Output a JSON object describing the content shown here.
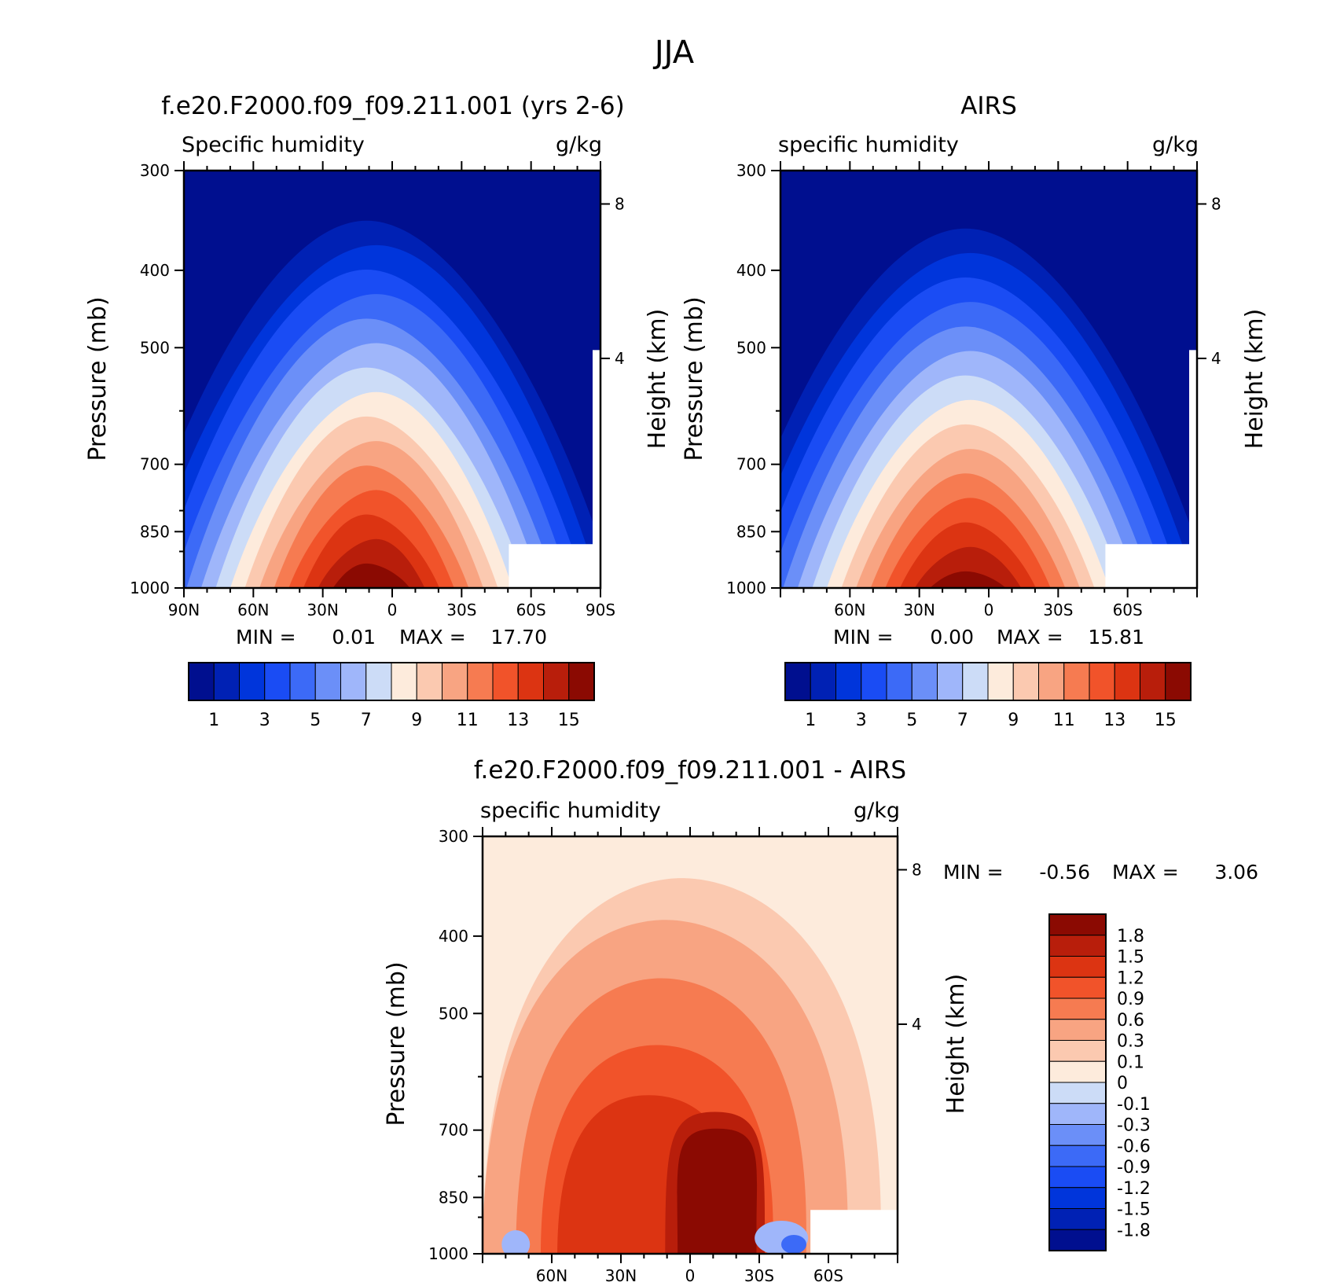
{
  "figure": {
    "title": "JJA"
  },
  "colors": {
    "seq": [
      "#000f8f",
      "#0021b4",
      "#0035db",
      "#1a4cf4",
      "#3c6af7",
      "#6b8ff8",
      "#9fb6fa",
      "#ccdcf7",
      "#fdebdc",
      "#fbc9b0",
      "#f8a482",
      "#f67b51",
      "#f1532a",
      "#dc3412",
      "#b81e0b",
      "#8b0a02"
    ],
    "diffpos": [
      "#fdebdc",
      "#fbc9b0",
      "#f8a482",
      "#f67b51",
      "#f1532a",
      "#dc3412",
      "#b81e0b",
      "#8b0a02"
    ],
    "diffneg": [
      "#000f8f",
      "#0021b4",
      "#0035db",
      "#1a4cf4",
      "#3c6af7",
      "#6b8ff8",
      "#9fb6fa",
      "#ccdcf7"
    ]
  },
  "chart_data": [
    {
      "type": "heatmap",
      "id": "model",
      "title": "f.e20.F2000.f09_f09.211.001 (yrs 2-6)",
      "left_label": "Specific humidity",
      "right_label": "g/kg",
      "ylabel": "Pressure (mb)",
      "y2label": "Height (km)",
      "y_ticks": [
        "300",
        "400",
        "500",
        "700",
        "850",
        "1000"
      ],
      "y2_ticks": [
        "8",
        "4"
      ],
      "x_ticks": [
        "90N",
        "60N",
        "30N",
        "0",
        "30S",
        "60S",
        "90S"
      ],
      "stats": {
        "min_label": "MIN =",
        "min": "0.01",
        "max_label": "MAX =",
        "max": "17.70"
      },
      "colorbar_labels": [
        "1",
        "3",
        "5",
        "7",
        "9",
        "11",
        "13",
        "15"
      ]
    },
    {
      "type": "heatmap",
      "id": "obs",
      "title": "AIRS",
      "left_label": "specific humidity",
      "right_label": "g/kg",
      "ylabel": "Pressure (mb)",
      "y2label": "Height (km)",
      "y_ticks": [
        "300",
        "400",
        "500",
        "700",
        "850",
        "1000"
      ],
      "y2_ticks": [
        "8",
        "4"
      ],
      "x_ticks": [
        "60N",
        "30N",
        "0",
        "30S",
        "60S"
      ],
      "stats": {
        "min_label": "MIN =",
        "min": "0.00",
        "max_label": "MAX =",
        "max": "15.81"
      },
      "colorbar_labels": [
        "1",
        "3",
        "5",
        "7",
        "9",
        "11",
        "13",
        "15"
      ]
    },
    {
      "type": "heatmap",
      "id": "diff",
      "title": "f.e20.F2000.f09_f09.211.001 - AIRS",
      "left_label": "specific humidity",
      "right_label": "g/kg",
      "ylabel": "Pressure (mb)",
      "y2label": "Height (km)",
      "y_ticks": [
        "300",
        "400",
        "500",
        "700",
        "850",
        "1000"
      ],
      "y2_ticks": [
        "8",
        "4"
      ],
      "x_ticks": [
        "60N",
        "30N",
        "0",
        "30S",
        "60S"
      ],
      "stats": {
        "min_label": "MIN =",
        "min": "-0.56",
        "max_label": "MAX =",
        "max": "3.06"
      },
      "colorbar_labels": [
        "1.8",
        "1.5",
        "1.2",
        "0.9",
        "0.6",
        "0.3",
        "0.1",
        "0",
        "-0.1",
        "-0.3",
        "-0.6",
        "-0.9",
        "-1.2",
        "-1.5",
        "-1.8"
      ]
    }
  ]
}
